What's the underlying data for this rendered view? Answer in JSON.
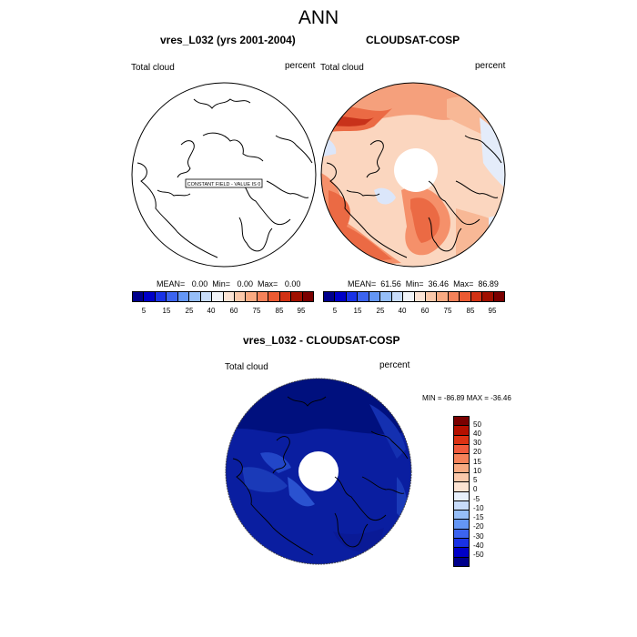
{
  "title": "ANN",
  "panel_left": {
    "title": "vres_L032 (yrs 2001-2004)",
    "left_label": "Total cloud",
    "right_label": "percent",
    "constant_field_label": "CONSTANT FIELD - VALUE IS 0",
    "stats": "MEAN=   0.00  Min=   0.00  Max=   0.00"
  },
  "panel_right": {
    "title": "CLOUDSAT-COSP",
    "left_label": "Total cloud",
    "right_label": "percent",
    "stats": "MEAN=  61.56  Min=  36.46  Max=  86.89"
  },
  "panel_diff": {
    "title": "vres_L032 - CLOUDSAT-COSP",
    "left_label": "Total cloud",
    "right_label": "percent",
    "minmax": "MIN = -86.89 MAX = -36.46"
  },
  "colorbar_top": {
    "colors": [
      "#00008c",
      "#0000c8",
      "#1932e6",
      "#3c64f0",
      "#6496f5",
      "#96bef8",
      "#c8dcfa",
      "#f0f3f8",
      "#fbe3d5",
      "#fbc8aa",
      "#f9aa82",
      "#f5825a",
      "#eb5a32",
      "#d23214",
      "#a01000",
      "#7a0000"
    ],
    "tick_labels": [
      "5",
      "15",
      "25",
      "40",
      "60",
      "75",
      "85",
      "95"
    ]
  },
  "colorbar_diff": {
    "colors": [
      "#7a0000",
      "#b41000",
      "#dc3214",
      "#f05a3c",
      "#f5825a",
      "#f8aa82",
      "#fbc8aa",
      "#fde3d2",
      "#e8f0fb",
      "#c8dcfa",
      "#96bef8",
      "#6496f5",
      "#3c64f0",
      "#1932e6",
      "#0000c8",
      "#00008c"
    ],
    "tick_labels": [
      "50",
      "40",
      "30",
      "20",
      "15",
      "10",
      "5",
      "0",
      "-5",
      "-10",
      "-15",
      "-20",
      "-30",
      "-40",
      "-50"
    ]
  }
}
